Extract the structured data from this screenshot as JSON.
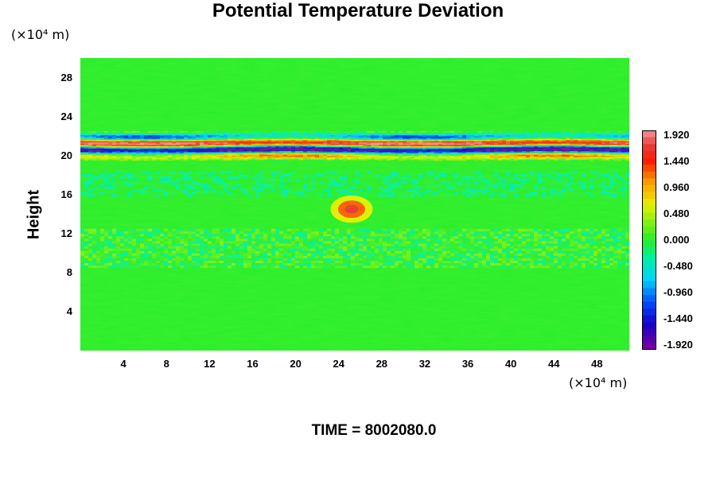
{
  "chart_data": {
    "type": "heatmap",
    "title": "Potential Temperature Deviation",
    "ylabel": "Height",
    "y_unit": "(×10⁴ m)",
    "x_unit": "(×10⁴ m)",
    "x_ticks": [
      "4",
      "8",
      "12",
      "16",
      "20",
      "24",
      "28",
      "32",
      "36",
      "40",
      "44",
      "48"
    ],
    "y_ticks": [
      "4",
      "8",
      "12",
      "16",
      "20",
      "24",
      "28"
    ],
    "xlim": [
      0,
      51
    ],
    "ylim": [
      0,
      30
    ],
    "colorbar": {
      "labels": [
        "1.920",
        "1.440",
        "0.960",
        "0.480",
        "0.000",
        "-0.480",
        "-0.960",
        "-1.440",
        "-1.920"
      ],
      "min": -1.92,
      "max": 1.92
    },
    "features": [
      {
        "description": "strong alternating band",
        "y_range": [
          19.5,
          22.5
        ],
        "value_range": [
          -1.92,
          1.92
        ]
      },
      {
        "description": "localized warm spot",
        "x": 25.2,
        "y": 14.5,
        "value": 1.6
      },
      {
        "description": "weak banding",
        "y_range": [
          8.5,
          12.5
        ],
        "value_range": [
          -0.3,
          0.3
        ]
      }
    ],
    "background_value": 0.0,
    "time_label": "TIME = 8002080.0"
  }
}
